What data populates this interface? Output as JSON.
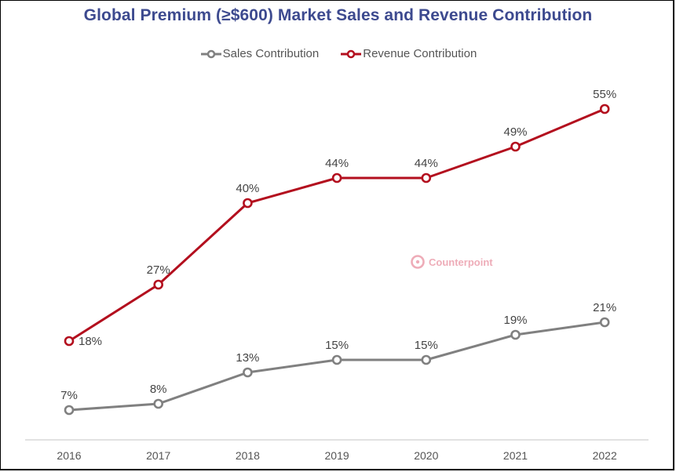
{
  "chart_data": {
    "type": "line",
    "title": "Global Premium (≥$600) Market Sales and Revenue Contribution",
    "categories": [
      "2016",
      "2017",
      "2018",
      "2019",
      "2020",
      "2021",
      "2022"
    ],
    "ylim": [
      0,
      60
    ],
    "grid": false,
    "legend_position": "top-center",
    "series": [
      {
        "name": "Sales Contribution",
        "color": "#808080",
        "values": [
          7,
          8,
          13,
          15,
          15,
          19,
          21
        ],
        "labels": [
          "7%",
          "8%",
          "13%",
          "15%",
          "15%",
          "19%",
          "21%"
        ]
      },
      {
        "name": "Revenue Contribution",
        "color": "#b30f1e",
        "values": [
          18,
          27,
          40,
          44,
          44,
          49,
          55
        ],
        "labels": [
          "18%",
          "27%",
          "40%",
          "44%",
          "44%",
          "49%",
          "55%"
        ]
      }
    ]
  },
  "watermark": {
    "text": "Counterpoint",
    "icon": "counterpoint-logo-icon"
  }
}
